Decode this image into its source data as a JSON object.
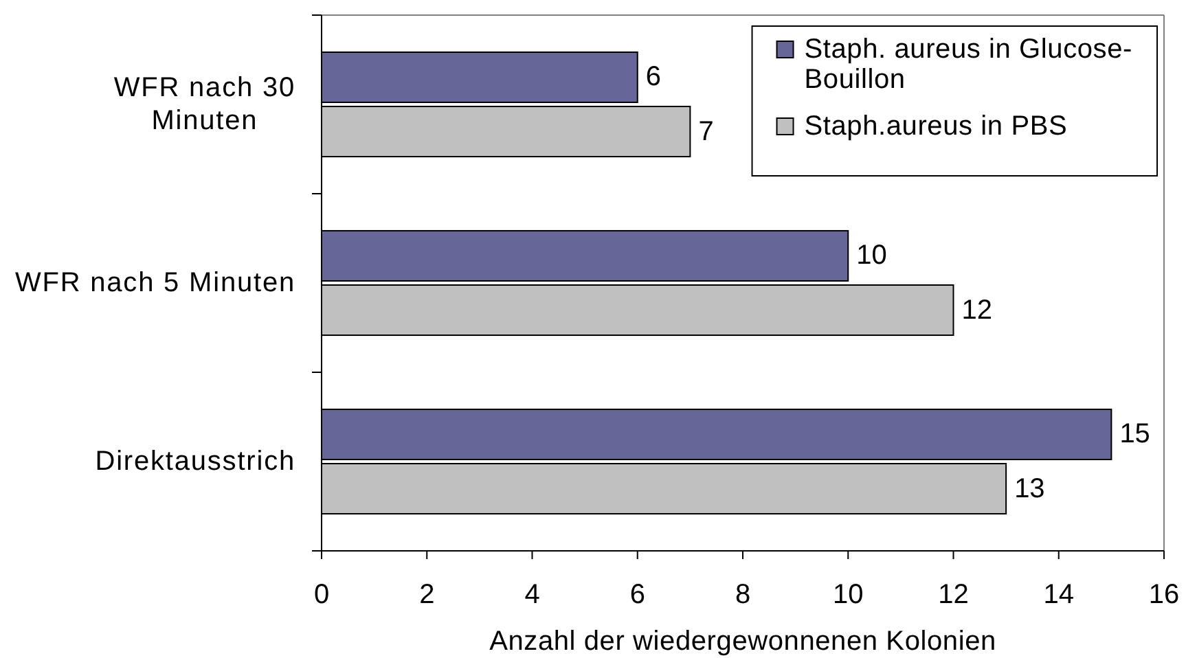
{
  "chart_data": {
    "type": "bar",
    "orientation": "horizontal",
    "categories": [
      "WFR nach 30 Minuten",
      "WFR nach 5 Minuten",
      "Direktausstrich"
    ],
    "series": [
      {
        "name": "Staph. aureus in Glucose-Bouillon",
        "color": "#666699",
        "values": [
          6,
          10,
          15
        ]
      },
      {
        "name": "Staph.aureus in PBS",
        "color": "#c0c0c0",
        "values": [
          7,
          12,
          13
        ]
      }
    ],
    "xlabel": "Anzahl der wiedergewonnenen Kolonien",
    "xlim": [
      0,
      16
    ],
    "xticks": [
      0,
      2,
      4,
      6,
      8,
      10,
      12,
      14,
      16
    ],
    "data_labels": true,
    "legend": "top right"
  }
}
